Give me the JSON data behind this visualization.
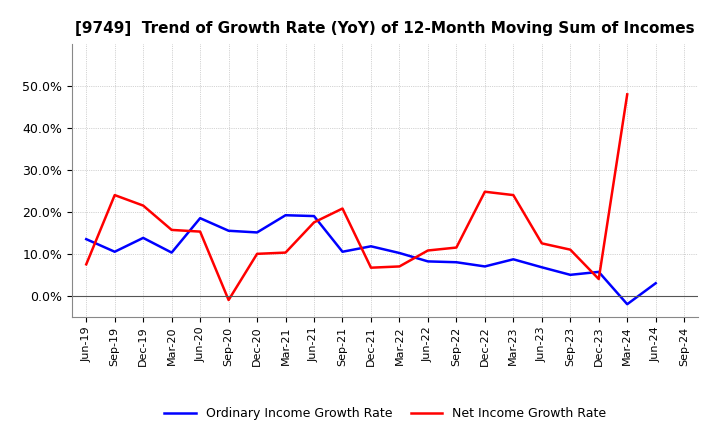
{
  "title": "[9749]  Trend of Growth Rate (YoY) of 12-Month Moving Sum of Incomes",
  "x_labels": [
    "Jun-19",
    "Sep-19",
    "Dec-19",
    "Mar-20",
    "Jun-20",
    "Sep-20",
    "Dec-20",
    "Mar-21",
    "Jun-21",
    "Sep-21",
    "Dec-21",
    "Mar-22",
    "Jun-22",
    "Sep-22",
    "Dec-22",
    "Mar-23",
    "Jun-23",
    "Sep-23",
    "Dec-23",
    "Mar-24",
    "Jun-24",
    "Sep-24"
  ],
  "ordinary_income": [
    0.135,
    0.105,
    0.138,
    0.103,
    0.185,
    0.155,
    0.151,
    0.192,
    0.19,
    0.105,
    0.118,
    0.102,
    0.082,
    0.08,
    0.07,
    0.087,
    0.068,
    0.05,
    0.057,
    -0.02,
    0.03,
    null
  ],
  "net_income": [
    0.075,
    0.24,
    0.215,
    0.157,
    0.153,
    -0.01,
    0.1,
    0.103,
    0.175,
    0.208,
    0.067,
    0.07,
    0.108,
    0.115,
    0.248,
    0.24,
    0.125,
    0.11,
    0.04,
    0.48,
    null,
    null
  ],
  "ordinary_color": "#0000ff",
  "net_color": "#ff0000",
  "ylim": [
    -0.05,
    0.6
  ],
  "yticks": [
    0.0,
    0.1,
    0.2,
    0.3,
    0.4,
    0.5
  ],
  "background_color": "#ffffff",
  "grid_color": "#888888",
  "legend_ordinary": "Ordinary Income Growth Rate",
  "legend_net": "Net Income Growth Rate",
  "title_fontsize": 11
}
